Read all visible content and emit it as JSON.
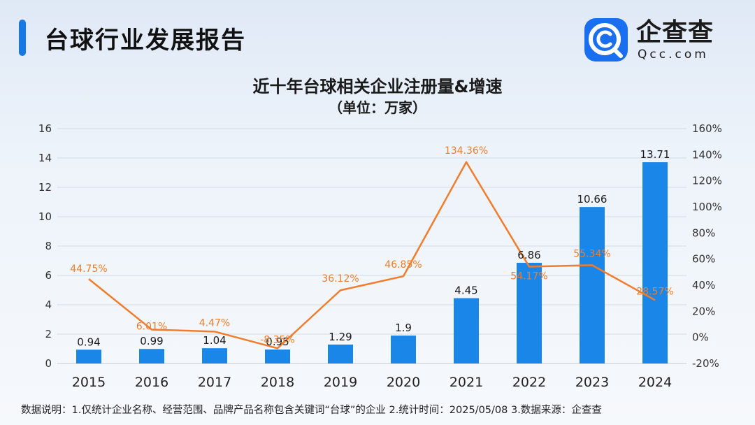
{
  "header": {
    "title": "台球行业发展报告"
  },
  "logo": {
    "name": "企查查",
    "domain": "Qcc.com",
    "brand_color": "#1a6ff0"
  },
  "footnote": "数据说明：1.仅统计企业名称、经营范围、品牌产品名称包含关键词“台球”的企业  2.统计时间：2025/05/08  3.数据来源：企查查",
  "colors": {
    "bar": "#1a86e8",
    "line": "#f07c2c",
    "line_label": "#f07c2c",
    "grid": "#d4dbe5",
    "axis_text": "#333333"
  },
  "chart_data": {
    "type": "bar",
    "title": "近十年台球相关企业注册量&增速",
    "subtitle": "（单位：万家）",
    "categories": [
      "2015",
      "2016",
      "2017",
      "2018",
      "2019",
      "2020",
      "2021",
      "2022",
      "2023",
      "2024"
    ],
    "series": [
      {
        "name": "注册量",
        "type": "bar",
        "axis": "left",
        "values": [
          0.94,
          0.99,
          1.04,
          0.95,
          1.29,
          1.9,
          4.45,
          6.86,
          10.66,
          13.71
        ],
        "labels": [
          "0.94",
          "0.99",
          "1.04",
          "0.95",
          "1.29",
          "1.9",
          "4.45",
          "6.86",
          "10.66",
          "13.71"
        ]
      },
      {
        "name": "增速",
        "type": "line",
        "axis": "right",
        "values": [
          44.75,
          6.01,
          4.47,
          -8.35,
          36.12,
          46.85,
          134.36,
          54.17,
          55.34,
          28.57
        ],
        "labels": [
          "44.75%",
          "6.01%",
          "4.47%",
          "-8.35%",
          "36.12%",
          "46.85%",
          "134.36%",
          "54.17%",
          "55.34%",
          "28.57%"
        ]
      }
    ],
    "y_left": {
      "min": 0,
      "max": 16,
      "ticks": [
        "0",
        "2",
        "4",
        "6",
        "8",
        "10",
        "12",
        "14",
        "16"
      ]
    },
    "y_right": {
      "min": -20,
      "max": 160,
      "ticks": [
        "-20%",
        "0%",
        "20%",
        "40%",
        "60%",
        "80%",
        "100%",
        "120%",
        "140%",
        "160%"
      ]
    },
    "grid": true
  }
}
